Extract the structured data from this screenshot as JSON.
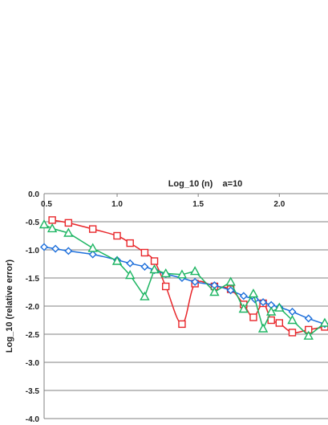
{
  "chart_data": {
    "type": "line",
    "title": "Log_10 (n)    a=10",
    "xlabel": "",
    "ylabel": "Log_10 (relative error)",
    "xlim": [
      0.55,
      2.3
    ],
    "ylim": [
      -4.0,
      0.0
    ],
    "x_ticks": [
      {
        "value": 0.5,
        "label": "0.5"
      },
      {
        "value": 1.0,
        "label": "1.0"
      },
      {
        "value": 1.5,
        "label": "1.5"
      },
      {
        "value": 2.0,
        "label": "2.0"
      }
    ],
    "y_ticks": [
      {
        "value": 0.0,
        "label": "0.0"
      },
      {
        "value": -0.5,
        "label": "-0.5"
      },
      {
        "value": -1.0,
        "label": "-1.0"
      },
      {
        "value": -1.5,
        "label": "-1.5"
      },
      {
        "value": -2.0,
        "label": "-2.0"
      },
      {
        "value": -2.5,
        "label": "-2.5"
      },
      {
        "value": -3.0,
        "label": "-3.0"
      },
      {
        "value": -3.5,
        "label": "-3.5"
      },
      {
        "value": -4.0,
        "label": "-4.0"
      }
    ],
    "grid": "horizontal",
    "x_axis_position": "top",
    "series": [
      {
        "color": "#e8262a",
        "marker": "square",
        "smooth": true,
        "points": [
          [
            0.6,
            -0.47
          ],
          [
            0.7,
            -0.52
          ],
          [
            0.85,
            -0.63
          ],
          [
            1.0,
            -0.75
          ],
          [
            1.08,
            -0.88
          ],
          [
            1.17,
            -1.05
          ],
          [
            1.23,
            -1.2
          ],
          [
            1.3,
            -1.65
          ],
          [
            1.4,
            -2.32
          ],
          [
            1.48,
            -1.6
          ],
          [
            1.6,
            -1.65
          ],
          [
            1.7,
            -1.7
          ],
          [
            1.78,
            -1.97
          ],
          [
            1.84,
            -2.2
          ],
          [
            1.9,
            -1.95
          ],
          [
            1.95,
            -2.25
          ],
          [
            2.0,
            -2.3
          ],
          [
            2.08,
            -2.47
          ],
          [
            2.18,
            -2.42
          ],
          [
            2.28,
            -2.37
          ]
        ]
      },
      {
        "color": "#1d6fdb",
        "marker": "diamond",
        "smooth": true,
        "points": [
          [
            0.55,
            -0.95
          ],
          [
            0.62,
            -0.98
          ],
          [
            0.7,
            -1.02
          ],
          [
            0.85,
            -1.08
          ],
          [
            1.0,
            -1.18
          ],
          [
            1.08,
            -1.24
          ],
          [
            1.17,
            -1.3
          ],
          [
            1.23,
            -1.36
          ],
          [
            1.3,
            -1.43
          ],
          [
            1.4,
            -1.5
          ],
          [
            1.48,
            -1.57
          ],
          [
            1.6,
            -1.63
          ],
          [
            1.7,
            -1.72
          ],
          [
            1.78,
            -1.82
          ],
          [
            1.85,
            -1.88
          ],
          [
            1.9,
            -1.93
          ],
          [
            1.95,
            -1.98
          ],
          [
            2.0,
            -2.02
          ],
          [
            2.08,
            -2.1
          ],
          [
            2.18,
            -2.22
          ],
          [
            2.28,
            -2.32
          ]
        ]
      },
      {
        "color": "#1db562",
        "marker": "triangle",
        "smooth": false,
        "points": [
          [
            0.55,
            -0.55
          ],
          [
            0.6,
            -0.62
          ],
          [
            0.7,
            -0.7
          ],
          [
            0.85,
            -0.97
          ],
          [
            1.0,
            -1.2
          ],
          [
            1.08,
            -1.45
          ],
          [
            1.17,
            -1.83
          ],
          [
            1.23,
            -1.35
          ],
          [
            1.3,
            -1.42
          ],
          [
            1.4,
            -1.44
          ],
          [
            1.48,
            -1.38
          ],
          [
            1.6,
            -1.75
          ],
          [
            1.7,
            -1.57
          ],
          [
            1.78,
            -2.05
          ],
          [
            1.84,
            -1.78
          ],
          [
            1.9,
            -2.4
          ],
          [
            1.95,
            -2.1
          ],
          [
            2.0,
            -2.03
          ],
          [
            2.08,
            -2.25
          ],
          [
            2.18,
            -2.53
          ],
          [
            2.28,
            -2.3
          ]
        ]
      }
    ]
  }
}
